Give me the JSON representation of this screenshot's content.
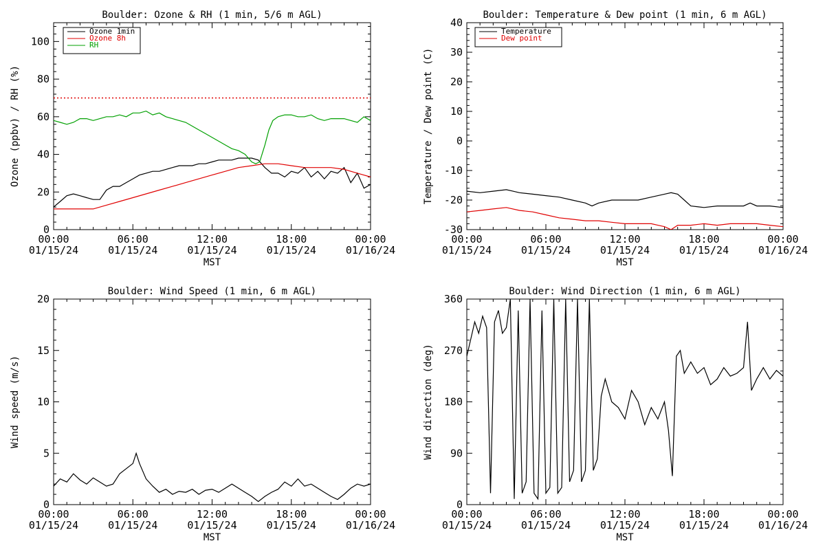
{
  "chart_data": [
    {
      "type": "line",
      "title": "Boulder: Ozone & RH (1 min, 5/6 m AGL)",
      "ylabel": "Ozone (ppbv) / RH (%)",
      "xlabel": "MST",
      "ylim": [
        0,
        110
      ],
      "yticks": [
        "0",
        "20",
        "40",
        "60",
        "80",
        "100"
      ],
      "ytick_values": [
        0,
        20,
        40,
        60,
        80,
        100
      ],
      "xticks": [
        {
          "time": "00:00",
          "date": "01/15/24",
          "hour": 0
        },
        {
          "time": "06:00",
          "date": "01/15/24",
          "hour": 6
        },
        {
          "time": "12:00",
          "date": "01/15/24",
          "hour": 12
        },
        {
          "time": "18:00",
          "date": "01/15/24",
          "hour": 18
        },
        {
          "time": "00:00",
          "date": "01/16/24",
          "hour": 24
        }
      ],
      "reference_line": {
        "y": 70,
        "color": "#e00000",
        "style": "dotted"
      },
      "legend": [
        {
          "name": "Ozone 1min",
          "color": "#000000"
        },
        {
          "name": "Ozone 8h",
          "color": "#e00000"
        },
        {
          "name": "RH",
          "color": "#00a000"
        }
      ],
      "series": [
        {
          "name": "Ozone 1min",
          "color": "#000000",
          "x": [
            0,
            0.5,
            1,
            1.5,
            2,
            2.5,
            3,
            3.5,
            4,
            4.5,
            5,
            5.5,
            6,
            6.5,
            7,
            7.5,
            8,
            8.5,
            9,
            9.5,
            10,
            10.5,
            11,
            11.5,
            12,
            12.5,
            13,
            13.5,
            14,
            14.5,
            15,
            15.5,
            16,
            16.5,
            17,
            17.5,
            18,
            18.5,
            19,
            19.5,
            20,
            20.5,
            21,
            21.5,
            22,
            22.5,
            23,
            23.5,
            24
          ],
          "y": [
            12,
            15,
            18,
            19,
            18,
            17,
            16,
            16,
            21,
            23,
            23,
            25,
            27,
            29,
            30,
            31,
            31,
            32,
            33,
            34,
            34,
            34,
            35,
            35,
            36,
            37,
            37,
            37,
            38,
            38,
            38,
            37,
            33,
            30,
            30,
            28,
            31,
            30,
            33,
            28,
            31,
            27,
            31,
            30,
            33,
            25,
            30,
            22,
            24
          ]
        },
        {
          "name": "Ozone 8h",
          "color": "#e00000",
          "x": [
            0,
            1,
            2,
            3,
            4,
            5,
            6,
            7,
            8,
            9,
            10,
            11,
            12,
            13,
            14,
            15,
            16,
            17,
            18,
            19,
            20,
            21,
            22,
            23,
            24
          ],
          "y": [
            11,
            11,
            11,
            11,
            13,
            15,
            17,
            19,
            21,
            23,
            25,
            27,
            29,
            31,
            33,
            34,
            35,
            35,
            34,
            33,
            33,
            33,
            32,
            30,
            28
          ]
        },
        {
          "name": "RH",
          "color": "#00a000",
          "x": [
            0,
            0.5,
            1,
            1.5,
            2,
            2.5,
            3,
            3.5,
            4,
            4.5,
            5,
            5.5,
            6,
            6.5,
            7,
            7.5,
            8,
            8.5,
            9,
            9.5,
            10,
            10.5,
            11,
            11.5,
            12,
            12.5,
            13,
            13.5,
            14,
            14.5,
            15,
            15.3,
            15.6,
            16,
            16.3,
            16.6,
            17,
            17.5,
            18,
            18.5,
            19,
            19.5,
            20,
            20.5,
            21,
            21.5,
            22,
            22.5,
            23,
            23.5,
            24
          ],
          "y": [
            58,
            57,
            56,
            57,
            59,
            59,
            58,
            59,
            60,
            60,
            61,
            60,
            62,
            62,
            63,
            61,
            62,
            60,
            59,
            58,
            57,
            55,
            53,
            51,
            49,
            47,
            45,
            43,
            42,
            40,
            36,
            35,
            36,
            45,
            53,
            58,
            60,
            61,
            61,
            60,
            60,
            61,
            59,
            58,
            59,
            59,
            59,
            58,
            57,
            60,
            58
          ]
        }
      ]
    },
    {
      "type": "line",
      "title": "Boulder: Temperature & Dew point (1 min, 6 m AGL)",
      "ylabel": "Temperature / Dew point (C)",
      "xlabel": "MST",
      "ylim": [
        -30,
        40
      ],
      "yticks": [
        "-30",
        "-20",
        "-10",
        "0",
        "10",
        "20",
        "30",
        "40"
      ],
      "ytick_values": [
        -30,
        -20,
        -10,
        0,
        10,
        20,
        30,
        40
      ],
      "xticks": [
        {
          "time": "00:00",
          "date": "01/15/24",
          "hour": 0
        },
        {
          "time": "06:00",
          "date": "01/15/24",
          "hour": 6
        },
        {
          "time": "12:00",
          "date": "01/15/24",
          "hour": 12
        },
        {
          "time": "18:00",
          "date": "01/15/24",
          "hour": 18
        },
        {
          "time": "00:00",
          "date": "01/16/24",
          "hour": 24
        }
      ],
      "legend": [
        {
          "name": "Temperature",
          "color": "#000000"
        },
        {
          "name": "Dew point",
          "color": "#e00000"
        }
      ],
      "series": [
        {
          "name": "Temperature",
          "color": "#000000",
          "x": [
            0,
            1,
            2,
            3,
            3.5,
            4,
            5,
            6,
            7,
            8,
            9,
            9.5,
            10,
            11,
            12,
            13,
            14,
            15,
            15.5,
            16,
            16.5,
            17,
            18,
            19,
            20,
            21,
            21.5,
            22,
            23,
            24
          ],
          "y": [
            -17,
            -17.5,
            -17,
            -16.5,
            -17,
            -17.5,
            -18,
            -18.5,
            -19,
            -20,
            -21,
            -22,
            -21,
            -20,
            -20,
            -20,
            -19,
            -18,
            -17.5,
            -18,
            -20,
            -22,
            -22.5,
            -22,
            -22,
            -22,
            -21,
            -22,
            -22,
            -22.5
          ]
        },
        {
          "name": "Dew point",
          "color": "#e00000",
          "x": [
            0,
            1,
            2,
            3,
            4,
            5,
            6,
            7,
            8,
            9,
            10,
            11,
            12,
            13,
            14,
            14.5,
            15,
            15.5,
            16,
            17,
            18,
            19,
            20,
            21,
            22,
            23,
            24
          ],
          "y": [
            -24,
            -23.5,
            -23,
            -22.5,
            -23.5,
            -24,
            -25,
            -26,
            -26.5,
            -27,
            -27,
            -27.5,
            -28,
            -28,
            -28,
            -28.5,
            -29,
            -30,
            -28.5,
            -28.5,
            -28,
            -28.5,
            -28,
            -28,
            -28,
            -28.5,
            -29
          ]
        }
      ]
    },
    {
      "type": "line",
      "title": "Boulder: Wind Speed (1 min, 6 m AGL)",
      "ylabel": "Wind speed (m/s)",
      "xlabel": "MST",
      "ylim": [
        0,
        20
      ],
      "yticks": [
        "0",
        "5",
        "10",
        "15",
        "20"
      ],
      "ytick_values": [
        0,
        5,
        10,
        15,
        20
      ],
      "xticks": [
        {
          "time": "00:00",
          "date": "01/15/24",
          "hour": 0
        },
        {
          "time": "06:00",
          "date": "01/15/24",
          "hour": 6
        },
        {
          "time": "12:00",
          "date": "01/15/24",
          "hour": 12
        },
        {
          "time": "18:00",
          "date": "01/15/24",
          "hour": 18
        },
        {
          "time": "00:00",
          "date": "01/16/24",
          "hour": 24
        }
      ],
      "series": [
        {
          "name": "Wind speed",
          "color": "#000000",
          "x": [
            0,
            0.5,
            1,
            1.5,
            2,
            2.5,
            3,
            3.5,
            4,
            4.5,
            5,
            5.5,
            6,
            6.25,
            6.5,
            7,
            7.5,
            8,
            8.5,
            9,
            9.5,
            10,
            10.5,
            11,
            11.5,
            12,
            12.5,
            13,
            13.5,
            14,
            14.5,
            15,
            15.5,
            16,
            16.5,
            17,
            17.5,
            18,
            18.5,
            19,
            19.5,
            20,
            20.5,
            21,
            21.5,
            22,
            22.5,
            23,
            23.5,
            24
          ],
          "y": [
            1.8,
            2.5,
            2.2,
            3,
            2.4,
            2,
            2.6,
            2.2,
            1.8,
            2,
            3,
            3.5,
            4,
            5,
            4,
            2.5,
            1.8,
            1.2,
            1.5,
            1,
            1.3,
            1.2,
            1.5,
            1,
            1.4,
            1.5,
            1.2,
            1.6,
            2,
            1.6,
            1.2,
            0.8,
            0.3,
            0.8,
            1.2,
            1.5,
            2.2,
            1.8,
            2.5,
            1.8,
            2,
            1.6,
            1.2,
            0.8,
            0.5,
            1,
            1.6,
            2,
            1.8,
            2
          ]
        }
      ]
    },
    {
      "type": "line",
      "title": "Boulder: Wind Direction (1 min, 6 m AGL)",
      "ylabel": "Wind direction (deg)",
      "xlabel": "MST",
      "ylim": [
        0,
        360
      ],
      "yticks": [
        "0",
        "90",
        "180",
        "270",
        "360"
      ],
      "ytick_values": [
        0,
        90,
        180,
        270,
        360
      ],
      "xticks": [
        {
          "time": "00:00",
          "date": "01/15/24",
          "hour": 0
        },
        {
          "time": "06:00",
          "date": "01/15/24",
          "hour": 6
        },
        {
          "time": "12:00",
          "date": "01/15/24",
          "hour": 12
        },
        {
          "time": "18:00",
          "date": "01/15/24",
          "hour": 18
        },
        {
          "time": "00:00",
          "date": "01/16/24",
          "hour": 24
        }
      ],
      "series": [
        {
          "name": "Wind direction",
          "color": "#000000",
          "x": [
            0,
            0.3,
            0.6,
            0.9,
            1.2,
            1.5,
            1.8,
            2.1,
            2.4,
            2.7,
            3.0,
            3.3,
            3.6,
            3.9,
            4.2,
            4.5,
            4.8,
            5.1,
            5.4,
            5.7,
            6.0,
            6.3,
            6.6,
            6.9,
            7.2,
            7.5,
            7.8,
            8.1,
            8.4,
            8.7,
            9.0,
            9.3,
            9.6,
            9.9,
            10.2,
            10.5,
            11,
            11.5,
            12,
            12.5,
            13,
            13.5,
            14,
            14.5,
            15,
            15.3,
            15.6,
            15.9,
            16.2,
            16.5,
            17,
            17.5,
            18,
            18.5,
            19,
            19.5,
            20,
            20.5,
            21,
            21.3,
            21.6,
            22,
            22.5,
            23,
            23.5,
            24
          ],
          "y": [
            260,
            290,
            320,
            300,
            330,
            310,
            20,
            320,
            340,
            300,
            310,
            360,
            10,
            340,
            20,
            40,
            360,
            20,
            10,
            340,
            20,
            30,
            360,
            20,
            30,
            360,
            40,
            60,
            360,
            40,
            60,
            360,
            60,
            80,
            190,
            220,
            180,
            170,
            150,
            200,
            180,
            140,
            170,
            150,
            180,
            130,
            50,
            260,
            270,
            230,
            250,
            230,
            240,
            210,
            220,
            240,
            225,
            230,
            240,
            320,
            200,
            220,
            240,
            220,
            235,
            225
          ]
        }
      ]
    }
  ]
}
